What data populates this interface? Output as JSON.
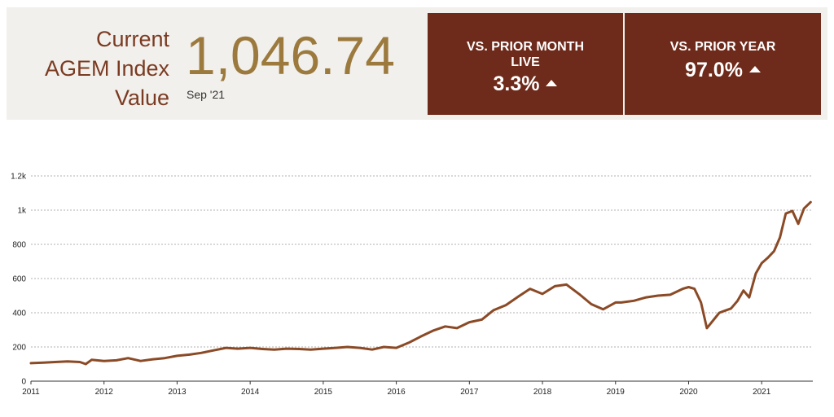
{
  "header": {
    "label_lines": [
      "Current",
      "AGEM Index",
      "Value"
    ],
    "value": "1,046.74",
    "date": "Sep '21"
  },
  "cards": [
    {
      "title_lines": [
        "VS. PRIOR MONTH",
        "LIVE"
      ],
      "value": "3.3%",
      "icon": "triangle-up-icon"
    },
    {
      "title_lines": [
        "VS. PRIOR YEAR"
      ],
      "value": "97.0%",
      "icon": "triangle-up-icon"
    }
  ],
  "colors": {
    "accent": "#6e2a1a",
    "line": "#8b4a26",
    "value": "#9c7a3e",
    "label": "#7a3b22"
  },
  "chart_data": {
    "type": "line",
    "title": "",
    "xlabel": "",
    "ylabel": "",
    "grid": true,
    "xlim": [
      2011,
      2021.7
    ],
    "ylim": [
      0,
      1200
    ],
    "x_ticks": [
      "2011",
      "2012",
      "2013",
      "2014",
      "2015",
      "2016",
      "2017",
      "2018",
      "2019",
      "2020",
      "2021"
    ],
    "y_ticks": [
      "0",
      "200",
      "400",
      "600",
      "800",
      "1k",
      "1.2k"
    ],
    "series": [
      {
        "x": [
          2011.0,
          2011.17,
          2011.33,
          2011.5,
          2011.67,
          2011.75,
          2011.83,
          2012.0,
          2012.17,
          2012.33,
          2012.5,
          2012.67,
          2012.83,
          2013.0,
          2013.17,
          2013.33,
          2013.5,
          2013.67,
          2013.83,
          2014.0,
          2014.17,
          2014.33,
          2014.5,
          2014.67,
          2014.83,
          2015.0,
          2015.17,
          2015.33,
          2015.5,
          2015.67,
          2015.83,
          2016.0,
          2016.17,
          2016.33,
          2016.5,
          2016.67,
          2016.83,
          2017.0,
          2017.17,
          2017.33,
          2017.5,
          2017.67,
          2017.83,
          2018.0,
          2018.17,
          2018.33,
          2018.5,
          2018.67,
          2018.83,
          2019.0,
          2019.08,
          2019.25,
          2019.42,
          2019.58,
          2019.75,
          2019.92,
          2020.0,
          2020.08,
          2020.17,
          2020.25,
          2020.42,
          2020.58,
          2020.67,
          2020.75,
          2020.83,
          2020.92,
          2021.0,
          2021.08,
          2021.17,
          2021.25,
          2021.33,
          2021.42,
          2021.5,
          2021.58,
          2021.67
        ],
        "y": [
          105,
          108,
          112,
          115,
          112,
          100,
          125,
          118,
          122,
          135,
          118,
          128,
          135,
          148,
          155,
          165,
          180,
          195,
          190,
          195,
          188,
          185,
          190,
          188,
          185,
          190,
          195,
          200,
          195,
          185,
          200,
          195,
          225,
          260,
          295,
          320,
          310,
          345,
          360,
          415,
          445,
          495,
          540,
          510,
          555,
          565,
          510,
          450,
          420,
          460,
          460,
          470,
          490,
          500,
          505,
          540,
          550,
          540,
          460,
          310,
          400,
          425,
          470,
          530,
          490,
          630,
          690,
          720,
          760,
          840,
          980,
          995,
          920,
          1010,
          1046.74
        ]
      }
    ]
  }
}
